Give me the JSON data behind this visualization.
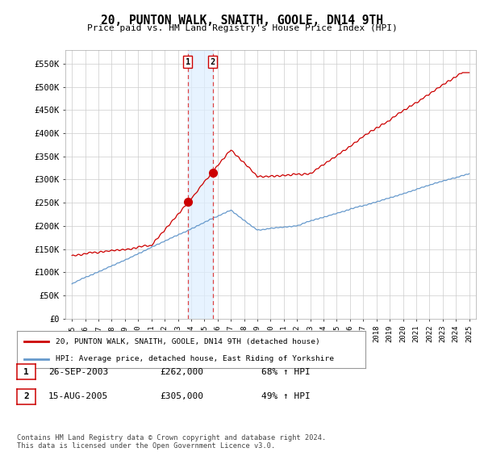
{
  "title": "20, PUNTON WALK, SNAITH, GOOLE, DN14 9TH",
  "subtitle": "Price paid vs. HM Land Registry's House Price Index (HPI)",
  "property_label": "20, PUNTON WALK, SNAITH, GOOLE, DN14 9TH (detached house)",
  "hpi_label": "HPI: Average price, detached house, East Riding of Yorkshire",
  "transaction1_label": "1",
  "transaction1_date": "26-SEP-2003",
  "transaction1_price": "£262,000",
  "transaction1_hpi": "68% ↑ HPI",
  "transaction2_label": "2",
  "transaction2_date": "15-AUG-2005",
  "transaction2_price": "£305,000",
  "transaction2_hpi": "49% ↑ HPI",
  "transaction1_x": 2003.74,
  "transaction1_y": 262000,
  "transaction2_x": 2005.62,
  "transaction2_y": 305000,
  "property_color": "#cc0000",
  "hpi_color": "#6699cc",
  "vline_color": "#dd4444",
  "shade_color": "#ddeeff",
  "background_color": "#ffffff",
  "grid_color": "#cccccc",
  "ylim": [
    0,
    580000
  ],
  "xlim_start": 1994.5,
  "xlim_end": 2025.5,
  "footer": "Contains HM Land Registry data © Crown copyright and database right 2024.\nThis data is licensed under the Open Government Licence v3.0.",
  "yticks": [
    0,
    50000,
    100000,
    150000,
    200000,
    250000,
    300000,
    350000,
    400000,
    450000,
    500000,
    550000
  ],
  "ytick_labels": [
    "£0",
    "£50K",
    "£100K",
    "£150K",
    "£200K",
    "£250K",
    "£300K",
    "£350K",
    "£400K",
    "£450K",
    "£500K",
    "£550K"
  ],
  "xticks": [
    1995,
    1996,
    1997,
    1998,
    1999,
    2000,
    2001,
    2002,
    2003,
    2004,
    2005,
    2006,
    2007,
    2008,
    2009,
    2010,
    2011,
    2012,
    2013,
    2014,
    2015,
    2016,
    2017,
    2018,
    2019,
    2020,
    2021,
    2022,
    2023,
    2024,
    2025
  ]
}
